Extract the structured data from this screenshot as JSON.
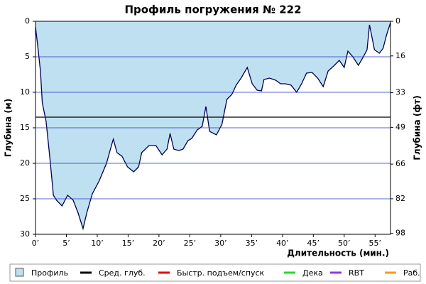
{
  "chart_data": {
    "type": "area",
    "title": "Профиль погружения № 222",
    "y_label": "Глубина (м)",
    "y2_label": "Глубина (фт)",
    "x_label": "Длительность (мин.)",
    "xlim": [
      0,
      57.5
    ],
    "ylim": [
      0,
      30
    ],
    "y_inverted": true,
    "y2lim": [
      0,
      98.43
    ],
    "xticks": [
      {
        "value": 0,
        "label": "0’"
      },
      {
        "value": 5,
        "label": "5’"
      },
      {
        "value": 10,
        "label": "10’"
      },
      {
        "value": 15,
        "label": "15’"
      },
      {
        "value": 20,
        "label": "20’"
      },
      {
        "value": 25,
        "label": "25’"
      },
      {
        "value": 30,
        "label": "30’"
      },
      {
        "value": 35,
        "label": "35’"
      },
      {
        "value": 40,
        "label": "40’"
      },
      {
        "value": 45,
        "label": "45’"
      },
      {
        "value": 50,
        "label": "50’"
      },
      {
        "value": 55,
        "label": "55’"
      }
    ],
    "yticks": [
      0,
      5,
      10,
      15,
      20,
      25,
      30
    ],
    "y2ticks": [
      0,
      16,
      33,
      49,
      66,
      82,
      98
    ],
    "grid": true,
    "grid_color": "#2233cc",
    "average_depth": 13.5,
    "average_color": "#000000",
    "series": [
      {
        "name": "Профиль",
        "color": "#bfe0f0",
        "line_color": "#000050",
        "x": [
          0,
          0.3,
          0.8,
          1.1,
          1.7,
          2.3,
          2.9,
          3.4,
          4.3,
          5.2,
          6.1,
          6.9,
          7.7,
          8.3,
          9.2,
          10.3,
          11.5,
          12.3,
          12.6,
          13.2,
          14,
          14.9,
          15.9,
          16.7,
          17.2,
          18.4,
          19.5,
          20.5,
          21.3,
          21.8,
          22.4,
          23.2,
          23.9,
          24.7,
          25.3,
          26.2,
          27,
          27.6,
          28.2,
          29.3,
          30.2,
          31,
          31.8,
          32.5,
          33.3,
          34.3,
          35.1,
          35.9,
          36.6,
          37,
          37.9,
          38.9,
          39.7,
          40.5,
          41.4,
          42.3,
          43.1,
          43.9,
          44.8,
          45.7,
          46.6,
          47.4,
          48.3,
          49.2,
          50,
          50.6,
          51.4,
          52.3,
          53.1,
          53.7,
          54.1,
          54.9,
          55.7,
          56.3,
          56.9,
          57.5
        ],
        "values": [
          0.8,
          3,
          7,
          11.5,
          14,
          19,
          24.5,
          25.2,
          26,
          24.5,
          25.2,
          27,
          29.2,
          27,
          24.3,
          22.5,
          20,
          17.5,
          16.6,
          18.5,
          19,
          20.5,
          21.2,
          20.5,
          18.5,
          17.5,
          17.5,
          18.8,
          18,
          15.8,
          18,
          18.2,
          18,
          16.8,
          16.5,
          15.3,
          14.8,
          12,
          15.5,
          16,
          14.5,
          11,
          10.3,
          9,
          8,
          6.5,
          8.8,
          9.7,
          9.8,
          8.2,
          8,
          8.3,
          8.8,
          8.8,
          9,
          10,
          8.8,
          7.3,
          7.2,
          8,
          9.2,
          7,
          6.3,
          5.5,
          6.5,
          4.2,
          5,
          6.2,
          5,
          4,
          0.5,
          4,
          4.5,
          3.8,
          1.8,
          0.2
        ]
      }
    ],
    "legend": [
      {
        "name": "Профиль",
        "color": "#bfe0f0",
        "kind": "box"
      },
      {
        "name": "Сред. глуб.",
        "color": "#000000",
        "kind": "line"
      },
      {
        "name": "Быстр. подъем/спуск",
        "color": "#ee0000",
        "kind": "line"
      },
      {
        "name": "Дека",
        "color": "#22dd22",
        "kind": "line"
      },
      {
        "name": "RBT",
        "color": "#9933dd",
        "kind": "line"
      },
      {
        "name": "Раб.",
        "color": "#ff9900",
        "kind": "line"
      }
    ]
  }
}
